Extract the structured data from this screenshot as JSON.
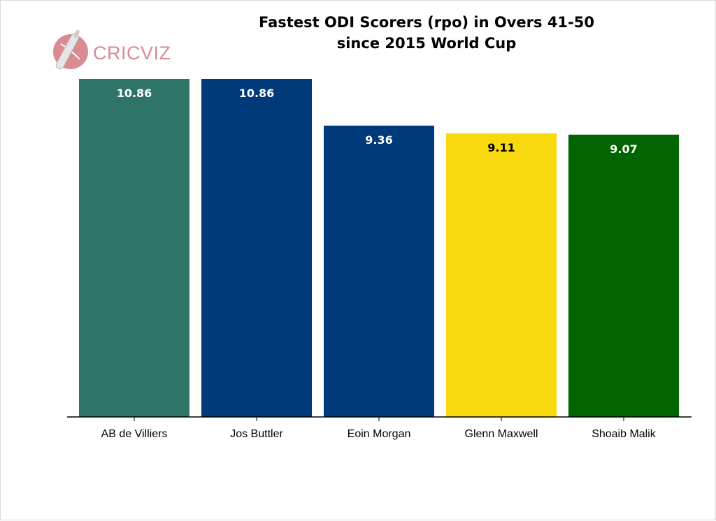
{
  "chart_data": {
    "type": "bar",
    "title_lines": [
      "Fastest ODI Scorers (rpo) in Overs 41-50",
      "since 2015 World Cup"
    ],
    "categories": [
      "AB de Villiers",
      "Jos Buttler",
      "Eoin Morgan",
      "Glenn Maxwell",
      "Shoaib Malik"
    ],
    "values": [
      10.86,
      10.86,
      9.36,
      9.11,
      9.07
    ],
    "value_labels": [
      "10.86",
      "10.86",
      "9.36",
      "9.11",
      "9.07"
    ],
    "colors": [
      "#2e7568",
      "#003a7a",
      "#003a7a",
      "#f7d90d",
      "#006400"
    ],
    "label_colors": [
      "#ffffff",
      "#ffffff",
      "#ffffff",
      "#000000",
      "#ffffff"
    ],
    "ylim": [
      0,
      10.86
    ],
    "grid": false,
    "legend": "none"
  },
  "logo": {
    "text": "CRICVIZ",
    "icon": "cricket-ball-bat-icon",
    "color": "#d98a92"
  }
}
